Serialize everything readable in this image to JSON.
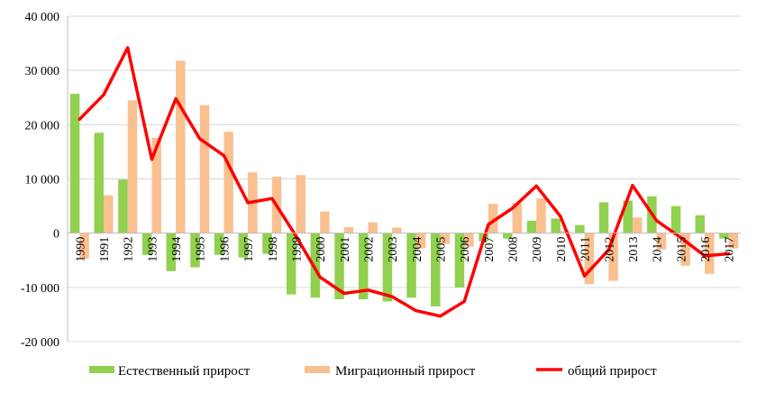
{
  "chart_data": {
    "type": "bar",
    "title": "",
    "xlabel": "",
    "ylabel": "",
    "ylim": [
      -20000,
      40000
    ],
    "yticks": [
      40000,
      30000,
      20000,
      10000,
      0,
      -10000,
      -20000
    ],
    "ytick_labels": [
      "40 000",
      "30 000",
      "20 000",
      "10 000",
      "0",
      "-10 000",
      "-20 000"
    ],
    "categories": [
      "1990",
      "1991",
      "1992",
      "1993",
      "1994",
      "1995",
      "1996",
      "1997",
      "1998",
      "1999",
      "2000",
      "2001",
      "2002",
      "2003",
      "2004",
      "2005",
      "2006",
      "2007",
      "2008",
      "2009",
      "2010",
      "2011",
      "2012",
      "2013",
      "2014",
      "2015",
      "2016",
      "2017"
    ],
    "series": [
      {
        "name": "Естественный прирост",
        "kind": "bar",
        "color": "#92d050",
        "values": [
          25700,
          18500,
          9900,
          -4000,
          -7000,
          -6300,
          -4000,
          -4500,
          -3800,
          -11300,
          -11900,
          -12200,
          -12200,
          -12600,
          -11900,
          -13500,
          -10000,
          -1500,
          -1000,
          2300,
          2700,
          1500,
          5700,
          6000,
          6800,
          5000,
          3300,
          -1000
        ]
      },
      {
        "name": "Миграционный прирост",
        "kind": "bar",
        "color": "#fac090",
        "values": [
          -4700,
          7000,
          24500,
          17600,
          31800,
          23600,
          18700,
          11200,
          10400,
          10700,
          4000,
          1100,
          2000,
          1000,
          -2800,
          -2000,
          -2500,
          5400,
          5600,
          6400,
          400,
          -9400,
          -8800,
          2900,
          -3000,
          -6000,
          -7500,
          -2800
        ]
      },
      {
        "name": "общий прирост",
        "kind": "line",
        "color": "#ff0000",
        "values": [
          21000,
          25500,
          34200,
          13600,
          24800,
          17400,
          14300,
          5600,
          6400,
          -500,
          -8100,
          -11100,
          -10500,
          -11700,
          -14300,
          -15300,
          -12600,
          1600,
          4600,
          8700,
          3100,
          -7900,
          -3100,
          8800,
          2300,
          -800,
          -4200,
          -3800
        ]
      }
    ],
    "grid": "horizontal",
    "legend": "bottom"
  }
}
